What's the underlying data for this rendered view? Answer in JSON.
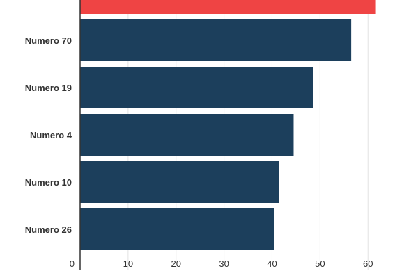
{
  "chart_data": {
    "type": "bar",
    "orientation": "horizontal",
    "categories": [
      "",
      "Numero 70",
      "Numero 19",
      "Numero 4",
      "Numero 10",
      "Numero 26"
    ],
    "values": [
      61.5,
      56.5,
      48.5,
      44.5,
      41.5,
      40.5
    ],
    "highlight_index": 0,
    "xticks": [
      0,
      10,
      20,
      30,
      40,
      50,
      60
    ],
    "xlim": [
      0,
      62
    ],
    "grid": true,
    "title": "",
    "xlabel": "",
    "ylabel": ""
  },
  "colors": {
    "bar": "#1c3f5c",
    "highlight": "#ef4444",
    "grid": "#e2e2e2",
    "axis": "#333333"
  }
}
